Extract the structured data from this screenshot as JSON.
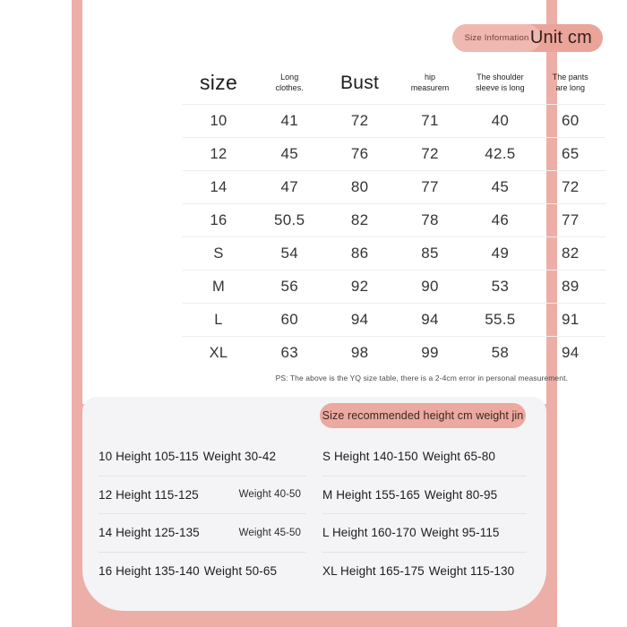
{
  "page": {
    "frame_color": "#ecaea6",
    "card_color": "#ffffff",
    "panel_color": "#f4f4f6",
    "accent_pill_color": "#eba49a"
  },
  "header": {
    "info_label": "Size Information",
    "unit_label": "Unit cm"
  },
  "size_table": {
    "columns": [
      {
        "lines": [
          "size"
        ],
        "style": "large"
      },
      {
        "lines": [
          "Long",
          "clothes."
        ],
        "style": "small"
      },
      {
        "lines": [
          "Bust"
        ],
        "style": "large bust"
      },
      {
        "lines": [
          "hip",
          "measurem"
        ],
        "style": "small"
      },
      {
        "lines": [
          "The shoulder",
          "sleeve is long"
        ],
        "style": "small"
      },
      {
        "lines": [
          "The pants",
          "are long"
        ],
        "style": "small"
      }
    ],
    "rows": [
      {
        "size": "10",
        "values": [
          "41",
          "72",
          "71",
          "40",
          "60"
        ]
      },
      {
        "size": "12",
        "values": [
          "45",
          "76",
          "72",
          "42.5",
          "65"
        ]
      },
      {
        "size": "14",
        "values": [
          "47",
          "80",
          "77",
          "45",
          "72"
        ]
      },
      {
        "size": "16",
        "values": [
          "50.5",
          "82",
          "78",
          "46",
          "77"
        ]
      },
      {
        "size": "S",
        "values": [
          "54",
          "86",
          "85",
          "49",
          "82"
        ]
      },
      {
        "size": "M",
        "values": [
          "56",
          "92",
          "90",
          "53",
          "89"
        ]
      },
      {
        "size": "L",
        "values": [
          "60",
          "94",
          "94",
          "55.5",
          "91"
        ]
      },
      {
        "size": "XL",
        "values": [
          "63",
          "98",
          "99",
          "58",
          "94"
        ]
      }
    ],
    "note": "PS: The above is the YQ size table, there is a 2-4cm error in personal measurement."
  },
  "recommend": {
    "pill_label": "Size recommended height cm weight jin",
    "left": [
      {
        "main": "10 Height 105-115",
        "weight": "Weight 30-42",
        "small_weight": false
      },
      {
        "main": "12 Height 115-125",
        "weight": "Weight 40-50",
        "small_weight": true
      },
      {
        "main": "14 Height 125-135",
        "weight": "Weight 45-50",
        "small_weight": true
      },
      {
        "main": "16 Height 135-140",
        "weight": "Weight 50-65",
        "small_weight": false
      }
    ],
    "right": [
      {
        "main": "S Height 140-150",
        "weight": "Weight 65-80",
        "small_weight": false
      },
      {
        "main": "M Height 155-165",
        "weight": "Weight 80-95",
        "small_weight": false
      },
      {
        "main": "L Height 160-170",
        "weight": "Weight 95-115",
        "small_weight": false
      },
      {
        "main": "XL Height 165-175",
        "weight": "Weight 115-130",
        "small_weight": false
      }
    ]
  }
}
